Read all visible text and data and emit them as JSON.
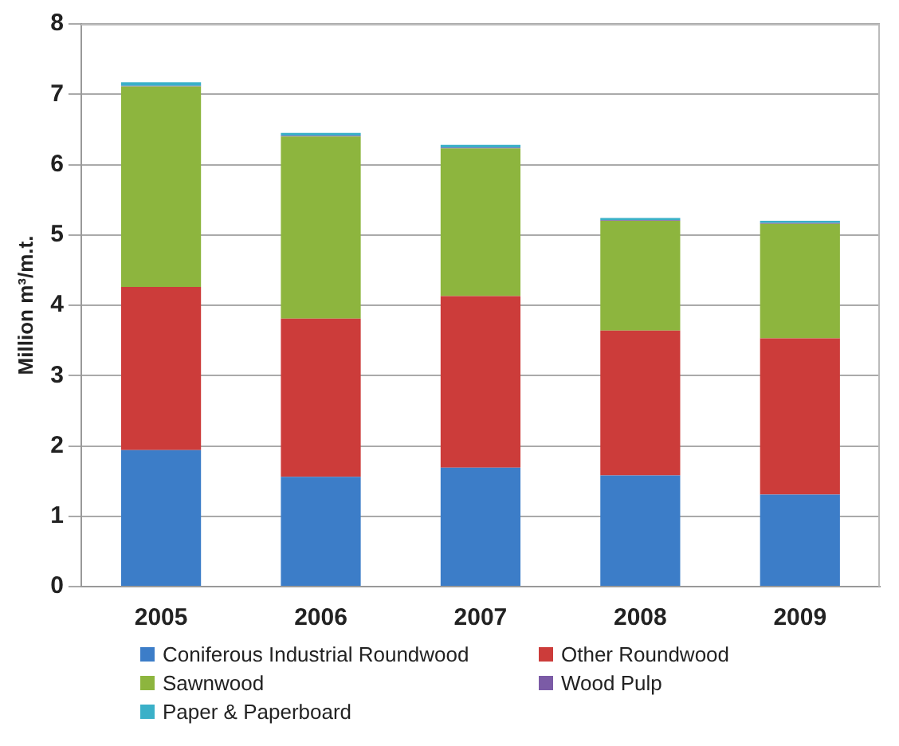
{
  "chart_data": {
    "type": "bar",
    "stacked": true,
    "ylabel": "Million m³/m.t.",
    "categories": [
      "2005",
      "2006",
      "2007",
      "2008",
      "2009"
    ],
    "series": [
      {
        "name": "Coniferous Industrial Roundwood",
        "color": "#3c7dc8",
        "values": [
          1.94,
          1.56,
          1.69,
          1.58,
          1.31
        ]
      },
      {
        "name": "Other Roundwood",
        "color": "#cc3c3a",
        "values": [
          2.32,
          2.25,
          2.44,
          2.06,
          2.22
        ]
      },
      {
        "name": "Sawnwood",
        "color": "#8db53e",
        "values": [
          2.85,
          2.59,
          2.1,
          1.56,
          1.63
        ]
      },
      {
        "name": "Wood Pulp",
        "color": "#7b5ba6",
        "values": [
          0.01,
          0.01,
          0.01,
          0.01,
          0.01
        ]
      },
      {
        "name": "Paper & Paperboard",
        "color": "#3ab0c8",
        "values": [
          0.05,
          0.04,
          0.04,
          0.03,
          0.03
        ]
      }
    ],
    "ylim": [
      0,
      8
    ],
    "yticks": [
      0,
      1,
      2,
      3,
      4,
      5,
      6,
      7,
      8
    ],
    "grid": "y",
    "legend": "bottom"
  }
}
